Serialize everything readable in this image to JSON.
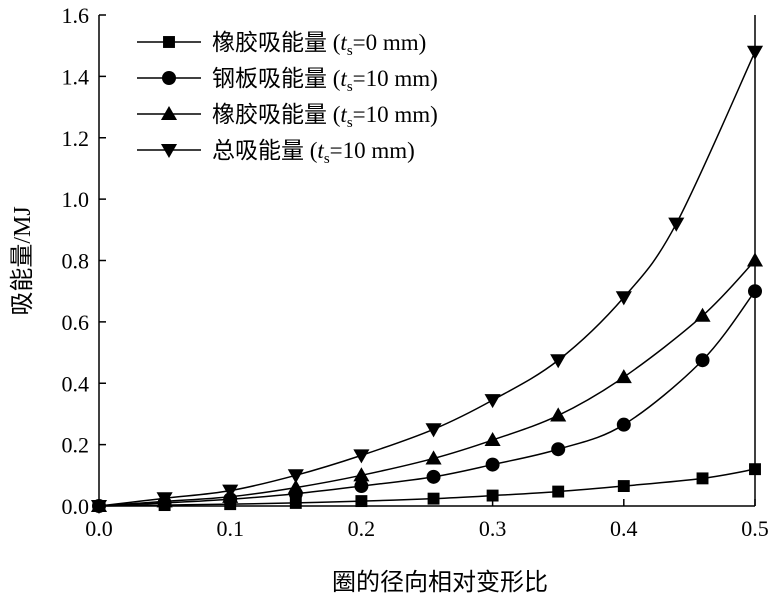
{
  "chart_data": {
    "type": "line",
    "xlabel": "圈的径向相对变形比",
    "ylabel": "吸能量/MJ",
    "xlim": [
      0.0,
      0.5
    ],
    "ylim": [
      0.0,
      1.6
    ],
    "x_ticks": [
      "0.0",
      "0.1",
      "0.2",
      "0.3",
      "0.4",
      "0.5"
    ],
    "y_ticks": [
      "0.0",
      "0.2",
      "0.4",
      "0.6",
      "0.8",
      "1.0",
      "1.2",
      "1.4",
      "1.6"
    ],
    "legend_position": "top-left",
    "series": [
      {
        "name": "橡胶吸能量 (t_s=0 mm)",
        "legend_prefix": "橡胶吸能量 (",
        "legend_var": "t",
        "legend_sub": "s",
        "legend_suffix": "=0 mm)",
        "marker": "square",
        "x": [
          0.0,
          0.05,
          0.1,
          0.15,
          0.2,
          0.255,
          0.3,
          0.35,
          0.4,
          0.46,
          0.5
        ],
        "y": [
          0.0,
          0.003,
          0.006,
          0.01,
          0.016,
          0.024,
          0.034,
          0.047,
          0.065,
          0.09,
          0.12
        ]
      },
      {
        "name": "钢板吸能量 (t_s=10 mm)",
        "legend_prefix": "钢板吸能量 (",
        "legend_var": "t",
        "legend_sub": "s",
        "legend_suffix": "=10 mm)",
        "marker": "circle",
        "x": [
          0.0,
          0.05,
          0.1,
          0.15,
          0.2,
          0.255,
          0.3,
          0.35,
          0.4,
          0.46,
          0.5
        ],
        "y": [
          0.0,
          0.01,
          0.022,
          0.04,
          0.065,
          0.095,
          0.135,
          0.185,
          0.265,
          0.475,
          0.7
        ]
      },
      {
        "name": "橡胶吸能量 (t_s=10 mm)",
        "legend_prefix": "橡胶吸能量 (",
        "legend_var": "t",
        "legend_sub": "s",
        "legend_suffix": "=10 mm)",
        "marker": "triangle-up",
        "x": [
          0.0,
          0.05,
          0.1,
          0.15,
          0.2,
          0.255,
          0.3,
          0.35,
          0.4,
          0.46,
          0.5
        ],
        "y": [
          0.0,
          0.015,
          0.03,
          0.06,
          0.1,
          0.155,
          0.215,
          0.295,
          0.42,
          0.62,
          0.8
        ]
      },
      {
        "name": "总吸能量 (t_s=10 mm)",
        "legend_prefix": "总吸能量 (",
        "legend_var": "t",
        "legend_sub": "s",
        "legend_suffix": "=10 mm)",
        "marker": "triangle-down",
        "x": [
          0.0,
          0.05,
          0.1,
          0.15,
          0.2,
          0.255,
          0.3,
          0.35,
          0.4,
          0.44,
          0.5
        ],
        "y": [
          0.0,
          0.025,
          0.05,
          0.1,
          0.165,
          0.25,
          0.345,
          0.475,
          0.68,
          0.92,
          1.48
        ]
      }
    ]
  }
}
